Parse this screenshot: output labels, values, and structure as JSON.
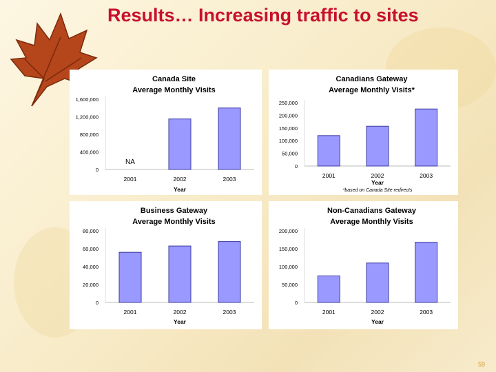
{
  "slide": {
    "title": "Results… Increasing traffic to sites",
    "page_number": "59",
    "colors": {
      "title": "#c8102e",
      "bar": "#9999ff",
      "bar_stroke": "#3a3aa0"
    }
  },
  "chart_data": [
    {
      "type": "bar",
      "title": "Canada Site",
      "subtitle": "Average Monthly Visits",
      "xlabel": "Year",
      "categories": [
        "2001",
        "2002",
        "2003"
      ],
      "values": [
        null,
        1150000,
        1400000
      ],
      "annotations": [
        {
          "category": "2001",
          "text": "NA"
        }
      ],
      "yticks": [
        "0",
        "400,000",
        "800,000",
        "1,200,000",
        "1,600,000"
      ],
      "ylim": [
        0,
        1600000
      ],
      "footnote": ""
    },
    {
      "type": "bar",
      "title": "Canadians Gateway",
      "subtitle": "Average Monthly Visits*",
      "xlabel": "Year",
      "categories": [
        "2001",
        "2002",
        "2003"
      ],
      "values": [
        120000,
        157000,
        225000
      ],
      "annotations": [],
      "yticks": [
        "0",
        "50,000",
        "100,000",
        "150,000",
        "200,000",
        "250,000"
      ],
      "ylim": [
        0,
        250000
      ],
      "footnote": "*based on Canada Site redirects"
    },
    {
      "type": "bar",
      "title": "Business Gateway",
      "subtitle": "Average Monthly Visits",
      "xlabel": "Year",
      "categories": [
        "2001",
        "2002",
        "2003"
      ],
      "values": [
        56000,
        63000,
        68000
      ],
      "annotations": [],
      "yticks": [
        "0",
        "20,000",
        "40,000",
        "60,000",
        "80,000"
      ],
      "ylim": [
        0,
        80000
      ],
      "footnote": ""
    },
    {
      "type": "bar",
      "title": "Non-Canadians Gateway",
      "subtitle": "Average Monthly Visits",
      "xlabel": "Year",
      "categories": [
        "2001",
        "2002",
        "2003"
      ],
      "values": [
        74000,
        110000,
        168000
      ],
      "annotations": [],
      "yticks": [
        "0",
        "50,000",
        "100,000",
        "150,000",
        "200,000"
      ],
      "ylim": [
        0,
        200000
      ],
      "footnote": ""
    }
  ]
}
